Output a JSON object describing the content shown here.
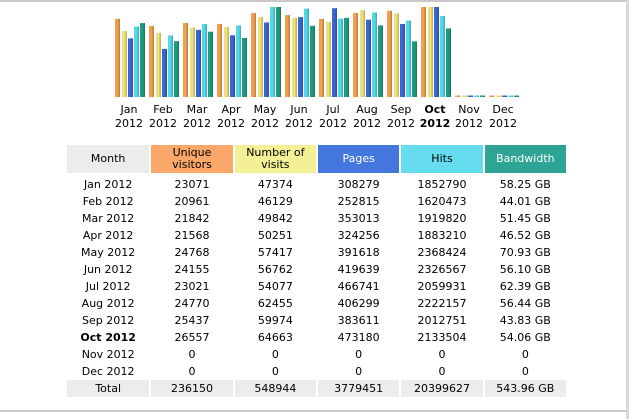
{
  "chart_data": {
    "type": "bar",
    "categories": [
      "Jan 2012",
      "Feb 2012",
      "Mar 2012",
      "Apr 2012",
      "May 2012",
      "Jun 2012",
      "Jul 2012",
      "Aug 2012",
      "Sep 2012",
      "Oct 2012",
      "Nov 2012",
      "Dec 2012"
    ],
    "month_labels": [
      "Jan",
      "Feb",
      "Mar",
      "Apr",
      "May",
      "Jun",
      "Jul",
      "Aug",
      "Sep",
      "Oct",
      "Nov",
      "Dec"
    ],
    "year_label": "2012",
    "current_index": 9,
    "series": [
      {
        "key": "unique",
        "color": "#f0a050",
        "values": [
          23071,
          20961,
          21842,
          21568,
          24768,
          24155,
          23021,
          24770,
          25437,
          26557,
          0,
          0
        ]
      },
      {
        "key": "visits",
        "color": "#ece07a",
        "values": [
          47374,
          46129,
          49842,
          50251,
          57417,
          56762,
          54077,
          62455,
          59974,
          64663,
          0,
          0
        ]
      },
      {
        "key": "pages",
        "color": "#3a66d0",
        "values": [
          308279,
          252815,
          353013,
          324256,
          391618,
          419639,
          466741,
          406299,
          383611,
          473180,
          0,
          0
        ]
      },
      {
        "key": "hits",
        "color": "#55d8e6",
        "values": [
          1852790,
          1620473,
          1919820,
          1883210,
          2368424,
          2326567,
          2059931,
          2222157,
          2012751,
          2133504,
          0,
          0
        ]
      },
      {
        "key": "bandwidth",
        "color": "#1f9a80",
        "values": [
          58.25,
          44.01,
          51.45,
          46.52,
          70.93,
          56.1,
          62.39,
          56.44,
          43.83,
          54.06,
          0,
          0
        ]
      }
    ]
  },
  "table": {
    "headers": {
      "month": "Month",
      "unique": "Unique visitors",
      "visits": "Number of visits",
      "pages": "Pages",
      "hits": "Hits",
      "bandwidth": "Bandwidth"
    },
    "rows": [
      {
        "month": "Jan 2012",
        "unique": "23071",
        "visits": "47374",
        "pages": "308279",
        "hits": "1852790",
        "bandwidth": "58.25 GB"
      },
      {
        "month": "Feb 2012",
        "unique": "20961",
        "visits": "46129",
        "pages": "252815",
        "hits": "1620473",
        "bandwidth": "44.01 GB"
      },
      {
        "month": "Mar 2012",
        "unique": "21842",
        "visits": "49842",
        "pages": "353013",
        "hits": "1919820",
        "bandwidth": "51.45 GB"
      },
      {
        "month": "Apr 2012",
        "unique": "21568",
        "visits": "50251",
        "pages": "324256",
        "hits": "1883210",
        "bandwidth": "46.52 GB"
      },
      {
        "month": "May 2012",
        "unique": "24768",
        "visits": "57417",
        "pages": "391618",
        "hits": "2368424",
        "bandwidth": "70.93 GB"
      },
      {
        "month": "Jun 2012",
        "unique": "24155",
        "visits": "56762",
        "pages": "419639",
        "hits": "2326567",
        "bandwidth": "56.10 GB"
      },
      {
        "month": "Jul 2012",
        "unique": "23021",
        "visits": "54077",
        "pages": "466741",
        "hits": "2059931",
        "bandwidth": "62.39 GB"
      },
      {
        "month": "Aug 2012",
        "unique": "24770",
        "visits": "62455",
        "pages": "406299",
        "hits": "2222157",
        "bandwidth": "56.44 GB"
      },
      {
        "month": "Sep 2012",
        "unique": "25437",
        "visits": "59974",
        "pages": "383611",
        "hits": "2012751",
        "bandwidth": "43.83 GB"
      },
      {
        "month": "Oct 2012",
        "unique": "26557",
        "visits": "64663",
        "pages": "473180",
        "hits": "2133504",
        "bandwidth": "54.06 GB",
        "current": true
      },
      {
        "month": "Nov 2012",
        "unique": "0",
        "visits": "0",
        "pages": "0",
        "hits": "0",
        "bandwidth": "0"
      },
      {
        "month": "Dec 2012",
        "unique": "0",
        "visits": "0",
        "pages": "0",
        "hits": "0",
        "bandwidth": "0"
      }
    ],
    "total": {
      "month": "Total",
      "unique": "236150",
      "visits": "548944",
      "pages": "3779451",
      "hits": "20399627",
      "bandwidth": "543.96 GB"
    }
  }
}
